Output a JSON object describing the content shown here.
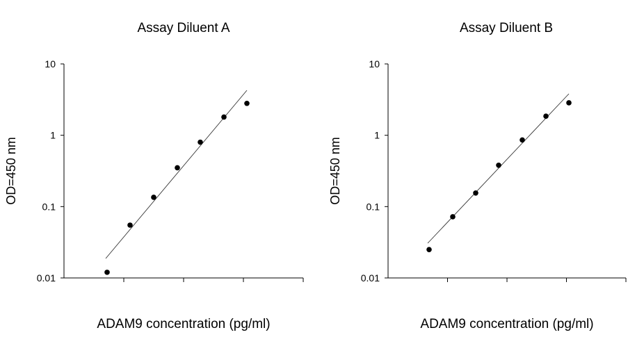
{
  "chart_data": [
    {
      "type": "scatter",
      "title": "Assay Diluent A",
      "xlabel": "ADAM9 concentration (pg/ml)",
      "ylabel": "OD=450 nm",
      "yscale": "log",
      "ylim": [
        0.01,
        10
      ],
      "yticks": [
        "10",
        "1",
        "0.1",
        "0.01"
      ],
      "xticks_count": 4,
      "x_tick_labels_shown": false,
      "grid": false,
      "legend": "none",
      "series": [
        {
          "points_y": [
            0.012,
            0.055,
            0.135,
            0.35,
            0.8,
            1.8,
            2.8
          ],
          "fit_line": true
        }
      ]
    },
    {
      "type": "scatter",
      "title": "Assay Diluent B",
      "xlabel": "ADAM9 concentration (pg/ml)",
      "ylabel": "OD=450 nm",
      "yscale": "log",
      "ylim": [
        0.01,
        10
      ],
      "yticks": [
        "10",
        "1",
        "0.1",
        "0.01"
      ],
      "xticks_count": 4,
      "x_tick_labels_shown": false,
      "grid": false,
      "legend": "none",
      "series": [
        {
          "points_y": [
            0.025,
            0.072,
            0.155,
            0.38,
            0.86,
            1.85,
            2.85
          ],
          "fit_line": true
        }
      ]
    }
  ]
}
